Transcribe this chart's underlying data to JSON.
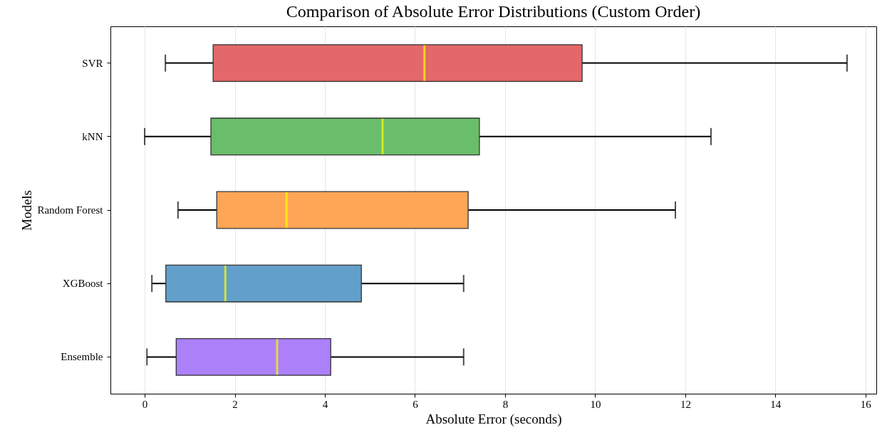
{
  "chart_data": {
    "type": "box",
    "title": "Comparison of Absolute Error Distributions (Custom Order)",
    "xlabel": "Absolute Error (seconds)",
    "ylabel": "Models",
    "orientation": "horizontal",
    "categories": [
      "SVR",
      "kNN",
      "Random Forest",
      "XGBoost",
      "Ensemble"
    ],
    "colors": [
      "#e36869",
      "#6abd6a",
      "#ffa556",
      "#629fca",
      "#ab80f9"
    ],
    "boxes": [
      {
        "low": 0.46,
        "q1": 1.52,
        "median": 6.21,
        "q3": 9.71,
        "high": 15.59
      },
      {
        "low": 0,
        "q1": 1.47,
        "median": 5.28,
        "q3": 7.43,
        "high": 12.57
      },
      {
        "low": 0.74,
        "q1": 1.6,
        "median": 3.15,
        "q3": 7.18,
        "high": 11.78
      },
      {
        "low": 0.16,
        "q1": 0.47,
        "median": 1.79,
        "q3": 4.81,
        "high": 7.08
      },
      {
        "low": 0.05,
        "q1": 0.7,
        "median": 2.94,
        "q3": 4.13,
        "high": 7.08
      }
    ],
    "xlim": [
      -0.76,
      16.24
    ],
    "xticks": [
      0,
      2,
      4,
      6,
      8,
      10,
      12,
      14,
      16
    ],
    "grid": "x"
  }
}
